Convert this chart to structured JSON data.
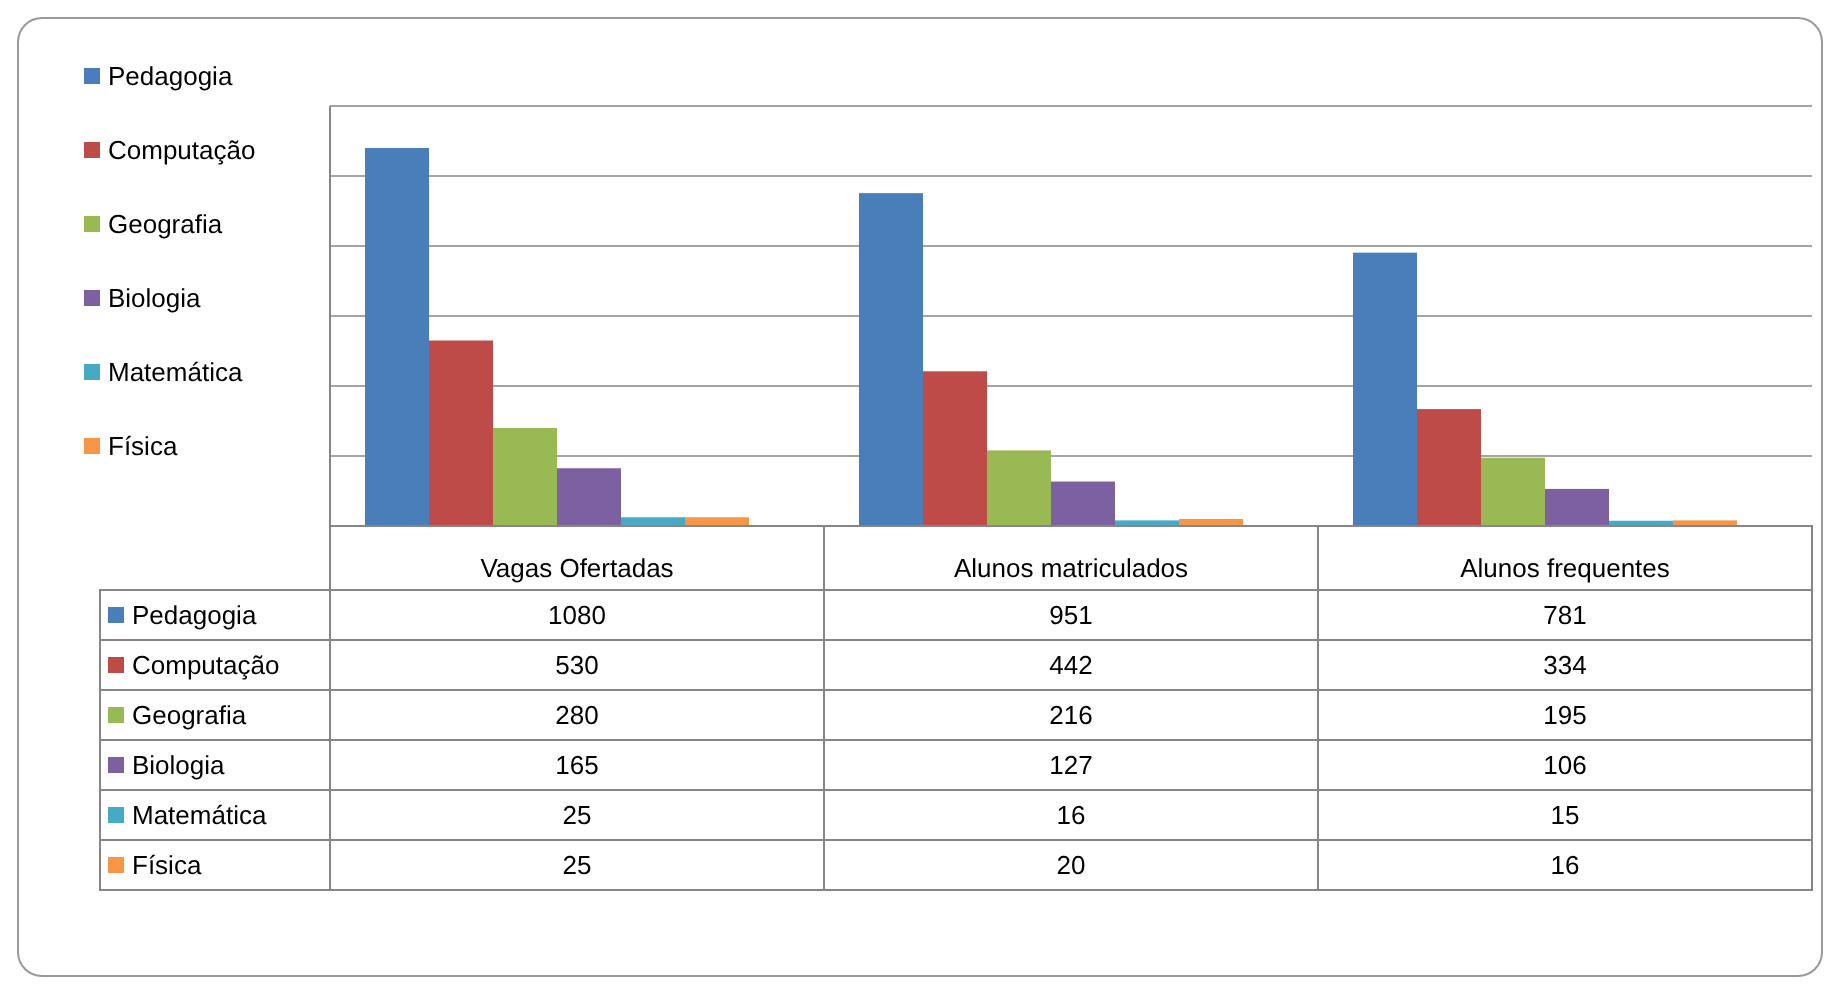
{
  "chart_data": {
    "type": "bar",
    "categories": [
      "Vagas  Ofertadas",
      "Alunos matriculados",
      "Alunos frequentes"
    ],
    "series": [
      {
        "name": "Pedagogia",
        "color": "#4a7ebb",
        "values": [
          1080,
          951,
          781
        ]
      },
      {
        "name": "Computação",
        "color": "#be4b48",
        "values": [
          530,
          442,
          334
        ]
      },
      {
        "name": "Geografia",
        "color": "#98b954",
        "values": [
          280,
          216,
          195
        ]
      },
      {
        "name": "Biologia",
        "color": "#7d60a0",
        "values": [
          165,
          127,
          106
        ]
      },
      {
        "name": "Matemática",
        "color": "#46aac5",
        "values": [
          25,
          16,
          15
        ]
      },
      {
        "name": "Física",
        "color": "#f79646",
        "values": [
          25,
          20,
          16
        ]
      }
    ],
    "ylim": [
      0,
      1200
    ],
    "yticks": [
      {
        "value": 200,
        "label": null
      },
      {
        "value": 400,
        "label": null
      },
      {
        "value": 600,
        "label": null
      },
      {
        "value": 800,
        "label": null
      },
      {
        "value": 1000,
        "label": null
      },
      {
        "value": 1200,
        "label": null
      }
    ],
    "tick_labels": "x",
    "grid": "y",
    "legend": "left",
    "data_labels": true
  }
}
